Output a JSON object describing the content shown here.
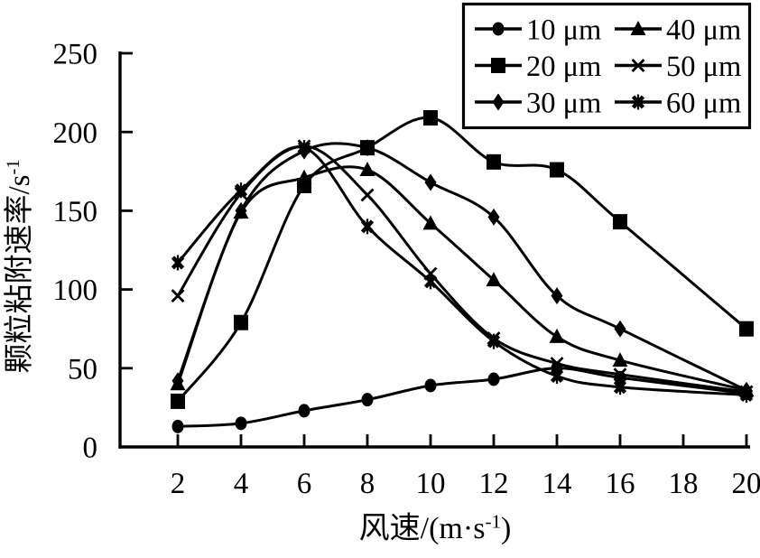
{
  "figure": {
    "background": "#ffffff",
    "ink_color": "#000000"
  },
  "chart_data": {
    "type": "line",
    "title": "",
    "xlabel": "风速/(m·s⁻¹)",
    "ylabel": "颗粒粘附速率/s⁻¹",
    "x": [
      2,
      4,
      6,
      8,
      10,
      12,
      14,
      16,
      20
    ],
    "series": [
      {
        "name": "10 μm",
        "marker": "circle",
        "values": [
          13,
          15,
          23,
          30,
          39,
          43,
          50,
          44,
          34
        ]
      },
      {
        "name": "20 μm",
        "marker": "square",
        "values": [
          29,
          79,
          166,
          190,
          209,
          181,
          176,
          143,
          75
        ]
      },
      {
        "name": "30 μm",
        "marker": "diamond",
        "values": [
          42,
          150,
          188,
          190,
          168,
          146,
          96,
          75,
          36
        ]
      },
      {
        "name": "40 μm",
        "marker": "triangle",
        "values": [
          40,
          149,
          171,
          176,
          142,
          106,
          70,
          55,
          36
        ]
      },
      {
        "name": "50 μm",
        "marker": "x",
        "values": [
          96,
          161,
          191,
          160,
          110,
          69,
          53,
          46,
          35
        ]
      },
      {
        "name": "60 μm",
        "marker": "x-bold",
        "values": [
          117,
          163,
          190,
          140,
          105,
          67,
          45,
          38,
          33
        ]
      }
    ],
    "xticks": [
      2,
      4,
      6,
      8,
      10,
      12,
      14,
      16,
      18,
      20
    ],
    "yticks": [
      0,
      50,
      100,
      150,
      200,
      250
    ],
    "ylim": [
      0,
      250
    ],
    "grid": false,
    "legend_position": "top-right"
  }
}
